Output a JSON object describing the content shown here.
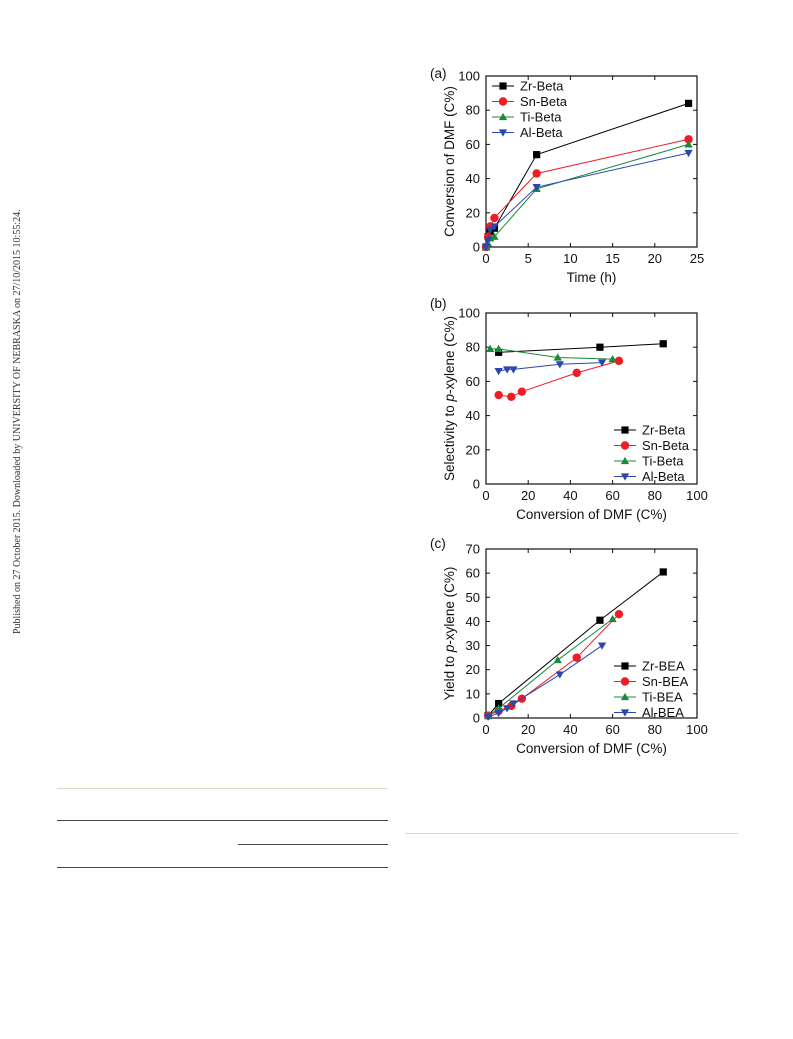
{
  "side_note": "Published on 27 October 2015. Downloaded by UNIVERSITY OF NEBRASKA on 27/10/2015 10:55:24.",
  "chart_data": [
    {
      "panel_label": "(a)",
      "type": "line",
      "xlabel": "Time (h)",
      "ylabel": "Conversion of DMF (C%)",
      "xlim": [
        0,
        25
      ],
      "ylim": [
        0,
        100
      ],
      "xticks": [
        0,
        5,
        10,
        15,
        20,
        25
      ],
      "yticks": [
        0,
        20,
        40,
        60,
        80,
        100
      ],
      "legend_position": "top-left",
      "series": [
        {
          "name": "Zr-Beta",
          "color": "#000000",
          "marker": "square",
          "x": [
            0,
            0.25,
            0.5,
            1,
            6,
            24
          ],
          "y": [
            0,
            6,
            9,
            11,
            54,
            84
          ]
        },
        {
          "name": "Sn-Beta",
          "color": "#ee1c24",
          "marker": "circle",
          "x": [
            0,
            0.25,
            0.5,
            1,
            6,
            24
          ],
          "y": [
            0,
            6,
            12,
            17,
            43,
            63
          ]
        },
        {
          "name": "Ti-Beta",
          "color": "#1a8a3c",
          "marker": "triangle-up",
          "x": [
            0,
            0.25,
            0.5,
            1,
            6,
            24
          ],
          "y": [
            0,
            2,
            5,
            6,
            34,
            60
          ]
        },
        {
          "name": "Al-Beta",
          "color": "#2c46b0",
          "marker": "triangle-down",
          "x": [
            0,
            0.25,
            0.5,
            1,
            6,
            24
          ],
          "y": [
            0,
            4,
            10,
            12,
            35,
            55
          ]
        }
      ]
    },
    {
      "panel_label": "(b)",
      "type": "line",
      "xlabel": "Conversion of DMF (C%)",
      "ylabel": "Selectivity to p-xylene (C%)",
      "xlim": [
        0,
        100
      ],
      "ylim": [
        0,
        100
      ],
      "xticks": [
        0,
        20,
        40,
        60,
        80,
        100
      ],
      "yticks": [
        0,
        20,
        40,
        60,
        80,
        100
      ],
      "legend_position": "bottom-right",
      "series": [
        {
          "name": "Zr-Beta",
          "color": "#000000",
          "marker": "square",
          "x": [
            6,
            54,
            84
          ],
          "y": [
            77,
            80,
            82
          ]
        },
        {
          "name": "Sn-Beta",
          "color": "#ee1c24",
          "marker": "circle",
          "x": [
            6,
            12,
            17,
            43,
            63
          ],
          "y": [
            52,
            51,
            54,
            65,
            72
          ]
        },
        {
          "name": "Ti-Beta",
          "color": "#1a8a3c",
          "marker": "triangle-up",
          "x": [
            2,
            6,
            34,
            60
          ],
          "y": [
            79,
            79,
            74,
            73
          ]
        },
        {
          "name": "Al-Beta",
          "color": "#2c46b0",
          "marker": "triangle-down",
          "x": [
            6,
            10,
            13,
            35,
            55
          ],
          "y": [
            66,
            67,
            67,
            70,
            71
          ]
        }
      ]
    },
    {
      "panel_label": "(c)",
      "type": "line",
      "xlabel": "Conversion of DMF (C%)",
      "ylabel": "Yield to p-xylene (C%)",
      "xlim": [
        0,
        100
      ],
      "ylim": [
        0,
        70
      ],
      "xticks": [
        0,
        20,
        40,
        60,
        80,
        100
      ],
      "yticks": [
        0,
        10,
        20,
        30,
        40,
        50,
        60,
        70
      ],
      "legend_position": "bottom-right",
      "series": [
        {
          "name": "Zr-BEA",
          "color": "#000000",
          "marker": "square",
          "x": [
            1,
            6,
            54,
            84
          ],
          "y": [
            1,
            6,
            40.5,
            60.5
          ]
        },
        {
          "name": "Sn-BEA",
          "color": "#ee1c24",
          "marker": "circle",
          "x": [
            1,
            6,
            12,
            17,
            43,
            63
          ],
          "y": [
            1,
            3,
            5,
            8,
            25,
            43
          ]
        },
        {
          "name": "Ti-BEA",
          "color": "#1a8a3c",
          "marker": "triangle-up",
          "x": [
            1,
            6,
            34,
            60
          ],
          "y": [
            1,
            4,
            24,
            41
          ]
        },
        {
          "name": "Al-BEA",
          "color": "#2c46b0",
          "marker": "triangle-down",
          "x": [
            1,
            6,
            10,
            13,
            35,
            55
          ],
          "y": [
            0.5,
            2,
            4,
            6,
            18,
            30
          ]
        }
      ]
    }
  ]
}
